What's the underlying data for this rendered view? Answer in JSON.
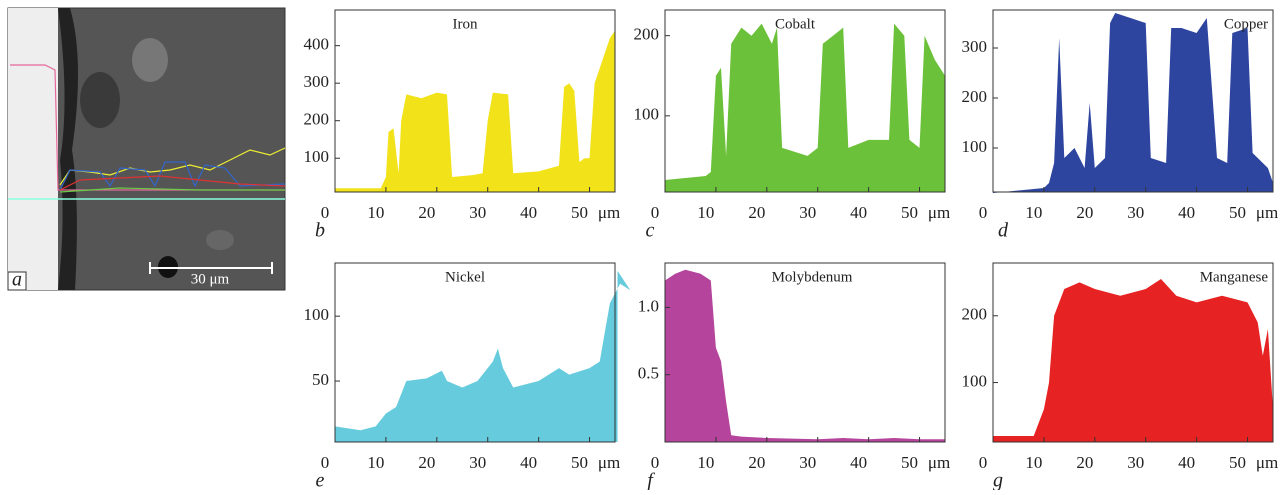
{
  "image_panel": {
    "label": "a",
    "scale_bar": "30 μm"
  },
  "chart_data": [
    {
      "type": "area",
      "title": "Iron",
      "panel_label": "b",
      "xlabel": "μm",
      "color": "#f2e21a",
      "x": [
        0,
        9,
        10,
        10.5,
        11.5,
        12.5,
        13,
        14,
        17,
        20,
        22,
        23,
        27,
        29,
        30,
        31,
        34,
        35,
        40,
        44,
        45,
        46,
        47,
        48,
        49,
        50,
        51,
        52,
        54,
        55
      ],
      "values": [
        20,
        20,
        50,
        170,
        180,
        60,
        200,
        270,
        260,
        275,
        270,
        50,
        55,
        60,
        200,
        275,
        270,
        60,
        65,
        80,
        290,
        300,
        280,
        90,
        100,
        100,
        300,
        340,
        420,
        440
      ],
      "xlim": [
        0,
        55
      ],
      "xticks": [
        0,
        10,
        20,
        30,
        40,
        50
      ],
      "ylim": [
        10,
        495
      ],
      "yticks": [
        100,
        200,
        300,
        400
      ]
    },
    {
      "type": "area",
      "title": "Cobalt",
      "panel_label": "c",
      "xlabel": "μm",
      "color": "#6cc13a",
      "x": [
        0,
        8,
        9,
        10,
        11,
        12,
        13,
        15,
        17,
        19,
        21,
        22,
        23,
        28,
        30,
        31,
        33,
        35,
        36,
        40,
        44,
        45,
        47,
        48,
        50,
        51,
        53,
        55
      ],
      "values": [
        20,
        25,
        30,
        150,
        160,
        50,
        190,
        210,
        200,
        215,
        190,
        210,
        60,
        50,
        60,
        190,
        200,
        210,
        60,
        70,
        70,
        215,
        200,
        70,
        60,
        200,
        170,
        150
      ],
      "xlim": [
        0,
        55
      ],
      "xticks": [
        0,
        10,
        20,
        30,
        40,
        50
      ],
      "ylim": [
        5,
        232
      ],
      "yticks": [
        100,
        200
      ]
    },
    {
      "type": "area",
      "title": "Copper",
      "panel_label": "d",
      "xlabel": "μm",
      "color": "#2e45a0",
      "x": [
        0,
        10,
        11,
        12,
        13,
        14,
        16,
        18,
        19,
        20,
        22,
        23,
        24,
        27,
        30,
        31,
        34,
        35,
        37,
        40,
        42,
        44,
        46,
        47,
        50,
        51,
        53,
        54,
        55
      ],
      "values": [
        10,
        20,
        30,
        70,
        320,
        80,
        100,
        60,
        190,
        60,
        80,
        350,
        370,
        360,
        350,
        80,
        70,
        340,
        340,
        330,
        360,
        80,
        70,
        330,
        340,
        90,
        70,
        60,
        30
      ],
      "xlim": [
        0,
        55
      ],
      "xticks": [
        0,
        10,
        20,
        30,
        40,
        50
      ],
      "ylim": [
        12,
        376
      ],
      "yticks": [
        100,
        200,
        300
      ]
    },
    {
      "type": "area",
      "title": "Nickel",
      "panel_label": "e",
      "xlabel": "μm",
      "color": "#66cbdc",
      "x": [
        0,
        5,
        8,
        10,
        12,
        14,
        18,
        21,
        22,
        25,
        28,
        31,
        32,
        33,
        35,
        40,
        44,
        46,
        50,
        52,
        54,
        56,
        58,
        55.5
      ],
      "values": [
        15,
        12,
        15,
        25,
        30,
        50,
        52,
        58,
        50,
        45,
        50,
        65,
        75,
        60,
        45,
        50,
        60,
        55,
        60,
        65,
        110,
        125,
        120,
        135
      ],
      "xlim": [
        0,
        55
      ],
      "xticks": [
        0,
        10,
        20,
        30,
        40,
        50
      ],
      "ylim": [
        3,
        141
      ],
      "yticks": [
        50,
        100
      ]
    },
    {
      "type": "area",
      "title": "Molybdenum",
      "panel_label": "f",
      "xlabel": "μm",
      "color": "#b4449c",
      "x": [
        0,
        2,
        4,
        7,
        9,
        10,
        11,
        12,
        13,
        15,
        20,
        30,
        35,
        40,
        45,
        50,
        55
      ],
      "values": [
        1.2,
        1.25,
        1.28,
        1.25,
        1.2,
        0.7,
        0.6,
        0.3,
        0.05,
        0.04,
        0.03,
        0.02,
        0.03,
        0.02,
        0.03,
        0.02,
        0.02
      ],
      "xlim": [
        0,
        55
      ],
      "xticks": [
        0,
        10,
        20,
        30,
        40,
        50
      ],
      "ylim": [
        0,
        1.33
      ],
      "yticks": [
        0.5,
        {
          "value": 1,
          "label": "1.0"
        }
      ]
    },
    {
      "type": "area",
      "title": "Manganese",
      "panel_label": "g",
      "xlabel": "μm",
      "color": "#e62222",
      "x": [
        0,
        8,
        10,
        11,
        12,
        14,
        17,
        20,
        25,
        30,
        33,
        36,
        40,
        45,
        50,
        52,
        53,
        54,
        55
      ],
      "values": [
        20,
        20,
        60,
        100,
        200,
        240,
        250,
        240,
        230,
        240,
        255,
        230,
        220,
        230,
        220,
        190,
        140,
        180,
        60
      ],
      "xlim": [
        0,
        55
      ],
      "xticks": [
        0,
        10,
        20,
        30,
        40,
        50
      ],
      "ylim": [
        11,
        279
      ],
      "yticks": [
        100,
        200
      ]
    }
  ]
}
